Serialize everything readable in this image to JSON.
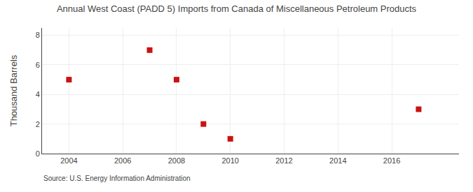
{
  "chart_data": {
    "type": "scatter",
    "title": "Annual West Coast (PADD 5) Imports from Canada of Miscellaneous Petroleum Products",
    "ylabel": "Thousand Barrels",
    "annotations": [
      "Source: U.S. Energy Information Administration"
    ],
    "x": [
      2004,
      2007,
      2008,
      2009,
      2010,
      2017
    ],
    "values": [
      5,
      7,
      5,
      2,
      1,
      3
    ],
    "color": "#cc1111",
    "marker": "square",
    "xlim": [
      2003.0,
      2018.5
    ],
    "ylim": [
      0,
      8.5
    ],
    "xticks": [
      2004,
      2006,
      2008,
      2010,
      2012,
      2014,
      2016
    ],
    "yticks": [
      0,
      2,
      4,
      6,
      8
    ],
    "grid": true
  }
}
